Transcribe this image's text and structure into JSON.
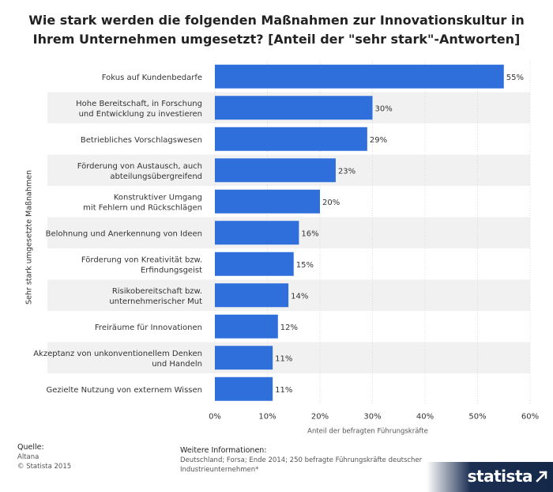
{
  "colors": {
    "bar": "#2f6fdc",
    "stripe": "#f1f1f1",
    "grid": "#dcdcdc",
    "brand_bg": "#14284a"
  },
  "chart_data": {
    "type": "bar",
    "orientation": "horizontal",
    "title": "Wie stark werden die folgenden Maßnahmen zur Innovationskultur in Ihrem Unternehmen umgesetzt? [Anteil der \"sehr stark\"-Antworten]",
    "xlabel": "Anteil der befragten Führungskräfte",
    "ylabel": "Sehr stark umgesetzte Maßnahmen",
    "xlim": [
      0,
      60
    ],
    "x_ticks": [
      "0%",
      "10%",
      "20%",
      "30%",
      "40%",
      "50%",
      "60%"
    ],
    "grid": true,
    "categories": [
      "Fokus auf Kundenbedarfe",
      "Hohe Bereitschaft, in Forschung\nund Entwicklung zu investieren",
      "Betriebliches Vorschlagswesen",
      "Förderung von Austausch, auch\nabteilungsübergreifend",
      "Konstruktiver Umgang\nmit Fehlern und Rückschlägen",
      "Belohnung und Anerkennung von Ideen",
      "Förderung von Kreativität bzw.\nErfindungsgeist",
      "Risikobereitschaft bzw.\nunternehmerischer Mut",
      "Freiräume für Innovationen",
      "Akzeptanz von unkonventionellem Denken\nund Handeln",
      "Gezielte Nutzung von externem Wissen"
    ],
    "values": [
      55,
      30,
      29,
      23,
      20,
      16,
      15,
      14,
      12,
      11,
      11
    ],
    "value_labels": [
      "55%",
      "30%",
      "29%",
      "23%",
      "20%",
      "16%",
      "15%",
      "14%",
      "12%",
      "11%",
      "11%"
    ]
  },
  "footer": {
    "source_heading": "Quelle:",
    "source_line1": "Altana",
    "source_line2": "© Statista 2015",
    "info_heading": "Weitere Informationen:",
    "info_line1": "Deutschland; Forsa; Ende 2014; 250 befragte Führungskräfte deutscher",
    "info_line2": "Industrieunternehmen*"
  },
  "brand": {
    "name": "statista",
    "icon": "statista-arrow-icon"
  }
}
